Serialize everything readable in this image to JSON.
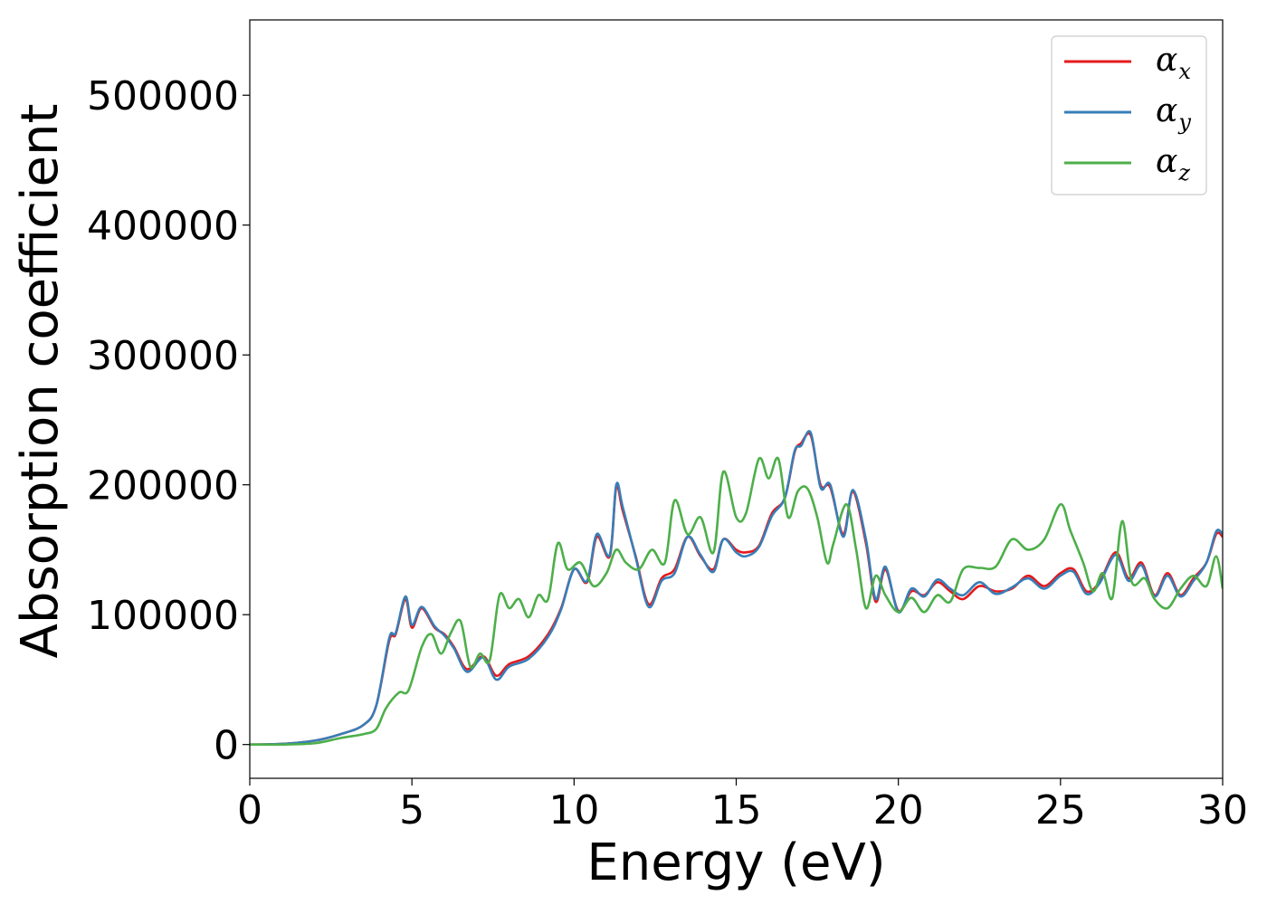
{
  "chart_data": {
    "type": "line",
    "xlabel": "Energy (eV)",
    "ylabel": "Absorption coefficient",
    "xlim": [
      0,
      30
    ],
    "ylim": [
      -26000,
      558000
    ],
    "x_ticks": [
      0,
      5,
      10,
      15,
      20,
      25,
      30
    ],
    "y_ticks": [
      0,
      100000,
      200000,
      300000,
      400000,
      500000
    ],
    "grid": false,
    "legend_position": "top-right",
    "series": [
      {
        "name": "α_x",
        "symbol": "α",
        "subscript": "x",
        "color": "#e41a1c",
        "x": [
          0,
          1,
          2,
          2.8,
          3.5,
          3.9,
          4.3,
          4.5,
          4.8,
          5.0,
          5.3,
          5.7,
          6.0,
          6.3,
          6.7,
          7.2,
          7.6,
          8.0,
          8.6,
          9.2,
          9.6,
          10.0,
          10.4,
          10.7,
          11.1,
          11.3,
          11.5,
          11.9,
          12.3,
          12.7,
          13.1,
          13.5,
          13.9,
          14.3,
          14.6,
          15.0,
          15.3,
          15.7,
          16.1,
          16.5,
          16.8,
          17.0,
          17.3,
          17.6,
          17.9,
          18.3,
          18.6,
          19.0,
          19.3,
          19.6,
          20.0,
          20.4,
          20.8,
          21.2,
          21.6,
          22.0,
          22.5,
          23.0,
          23.5,
          24.0,
          24.5,
          25.0,
          25.4,
          25.8,
          26.2,
          26.7,
          27.1,
          27.5,
          27.9,
          28.3,
          28.7,
          29.1,
          29.5,
          29.8,
          30.0
        ],
        "values": [
          0,
          500,
          3000,
          8000,
          15000,
          30000,
          80000,
          85000,
          112000,
          90000,
          105000,
          90000,
          85000,
          75000,
          58000,
          68000,
          53000,
          62000,
          68000,
          85000,
          105000,
          135000,
          125000,
          160000,
          145000,
          198000,
          180000,
          145000,
          108000,
          128000,
          135000,
          160000,
          145000,
          135000,
          158000,
          150000,
          148000,
          153000,
          178000,
          190000,
          225000,
          232000,
          238000,
          200000,
          198000,
          162000,
          195000,
          155000,
          110000,
          135000,
          103000,
          118000,
          115000,
          125000,
          118000,
          112000,
          122000,
          118000,
          120000,
          130000,
          122000,
          132000,
          135000,
          118000,
          125000,
          148000,
          128000,
          140000,
          115000,
          132000,
          115000,
          128000,
          140000,
          162000,
          160000
        ]
      },
      {
        "name": "α_y",
        "symbol": "α",
        "subscript": "y",
        "color": "#377eb8",
        "x": [
          0,
          1,
          2,
          2.8,
          3.5,
          3.9,
          4.3,
          4.5,
          4.8,
          5.0,
          5.3,
          5.7,
          6.0,
          6.3,
          6.7,
          7.2,
          7.6,
          8.0,
          8.6,
          9.2,
          9.6,
          10.0,
          10.4,
          10.7,
          11.1,
          11.3,
          11.5,
          11.9,
          12.3,
          12.7,
          13.1,
          13.5,
          13.9,
          14.3,
          14.6,
          15.0,
          15.3,
          15.7,
          16.1,
          16.5,
          16.8,
          17.0,
          17.3,
          17.6,
          17.9,
          18.3,
          18.6,
          19.0,
          19.3,
          19.6,
          20.0,
          20.4,
          20.8,
          21.2,
          21.6,
          22.0,
          22.5,
          23.0,
          23.5,
          24.0,
          24.5,
          25.0,
          25.4,
          25.8,
          26.2,
          26.7,
          27.1,
          27.5,
          27.9,
          28.3,
          28.7,
          29.1,
          29.5,
          29.8,
          30.0
        ],
        "values": [
          0,
          500,
          3000,
          8000,
          15000,
          30000,
          82000,
          86000,
          114000,
          92000,
          106000,
          91000,
          84000,
          74000,
          56000,
          67000,
          50000,
          60000,
          66000,
          83000,
          104000,
          135000,
          126000,
          162000,
          146000,
          200000,
          183000,
          144000,
          106000,
          126000,
          132000,
          160000,
          146000,
          133000,
          158000,
          148000,
          145000,
          152000,
          176000,
          190000,
          226000,
          230000,
          240000,
          198000,
          200000,
          160000,
          196000,
          158000,
          112000,
          137000,
          102000,
          120000,
          114000,
          127000,
          120000,
          115000,
          125000,
          116000,
          121000,
          128000,
          120000,
          130000,
          133000,
          116000,
          124000,
          146000,
          126000,
          138000,
          114000,
          130000,
          114000,
          126000,
          140000,
          164000,
          162000
        ]
      },
      {
        "name": "α_z",
        "symbol": "α",
        "subscript": "z",
        "color": "#4daf4a",
        "x": [
          0,
          1,
          2,
          2.8,
          3.5,
          3.9,
          4.2,
          4.6,
          4.9,
          5.3,
          5.6,
          5.9,
          6.2,
          6.5,
          6.8,
          7.1,
          7.4,
          7.7,
          8.0,
          8.3,
          8.6,
          8.9,
          9.2,
          9.5,
          9.8,
          10.2,
          10.6,
          11.0,
          11.3,
          11.6,
          12.0,
          12.4,
          12.8,
          13.1,
          13.5,
          13.9,
          14.3,
          14.6,
          15.0,
          15.3,
          15.7,
          16.0,
          16.3,
          16.6,
          16.9,
          17.2,
          17.5,
          17.8,
          18.0,
          18.4,
          18.7,
          19.0,
          19.3,
          19.6,
          20.0,
          20.4,
          20.8,
          21.2,
          21.6,
          22.0,
          22.5,
          23.0,
          23.5,
          24.0,
          24.5,
          25.0,
          25.3,
          25.7,
          26.0,
          26.3,
          26.6,
          26.9,
          27.2,
          27.6,
          27.9,
          28.3,
          28.7,
          29.1,
          29.5,
          29.8,
          30.0
        ],
        "values": [
          0,
          0,
          1000,
          5000,
          8000,
          12000,
          28000,
          40000,
          42000,
          75000,
          85000,
          70000,
          86000,
          95000,
          60000,
          70000,
          65000,
          115000,
          105000,
          112000,
          98000,
          115000,
          112000,
          155000,
          135000,
          140000,
          122000,
          132000,
          150000,
          140000,
          135000,
          150000,
          140000,
          188000,
          162000,
          175000,
          148000,
          210000,
          175000,
          178000,
          220000,
          205000,
          220000,
          175000,
          195000,
          197000,
          175000,
          140000,
          155000,
          185000,
          150000,
          105000,
          130000,
          115000,
          102000,
          113000,
          102000,
          115000,
          110000,
          135000,
          136000,
          137000,
          158000,
          150000,
          158000,
          185000,
          165000,
          140000,
          118000,
          132000,
          113000,
          172000,
          125000,
          128000,
          112000,
          105000,
          120000,
          130000,
          122000,
          145000,
          120000
        ]
      }
    ]
  }
}
